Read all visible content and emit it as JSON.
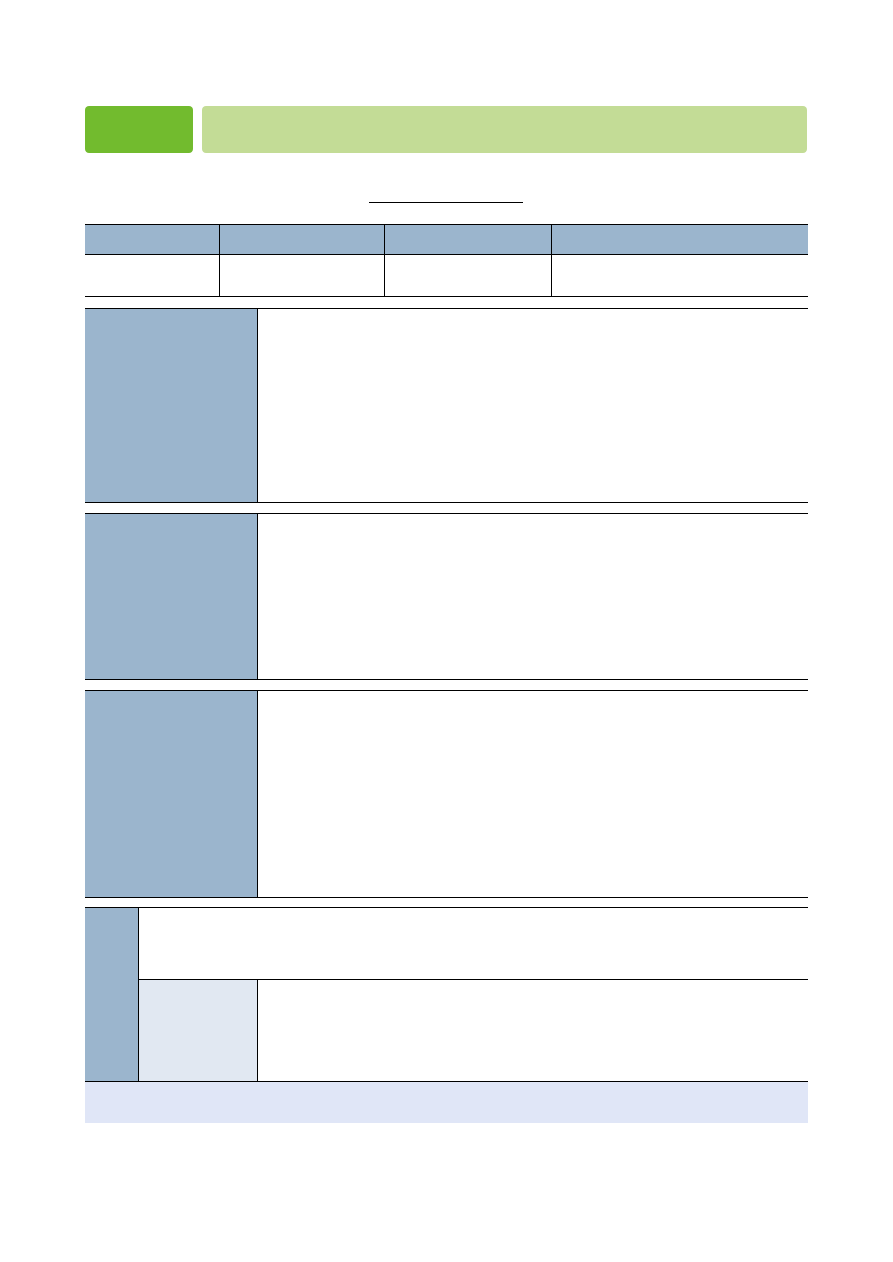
{
  "colors": {
    "section_number_badge": "#72bb2e",
    "section_title_bar": "#c3dc96",
    "table_header": "#9bb5cd",
    "sub_label_cell": "#e1e8f2",
    "footer_band": "#e0e6f7"
  },
  "header": {
    "section_number": "",
    "section_title": ""
  },
  "title": "",
  "info_table": {
    "headers": [
      "",
      "",
      "",
      ""
    ],
    "values": [
      "",
      "",
      "",
      ""
    ]
  },
  "sections": [
    {
      "label": "",
      "content": ""
    },
    {
      "label": "",
      "content": ""
    },
    {
      "label": "",
      "content": ""
    }
  ],
  "last_section": {
    "label": "",
    "top_content": "",
    "sub_label": "",
    "sub_content": ""
  },
  "footer": ""
}
